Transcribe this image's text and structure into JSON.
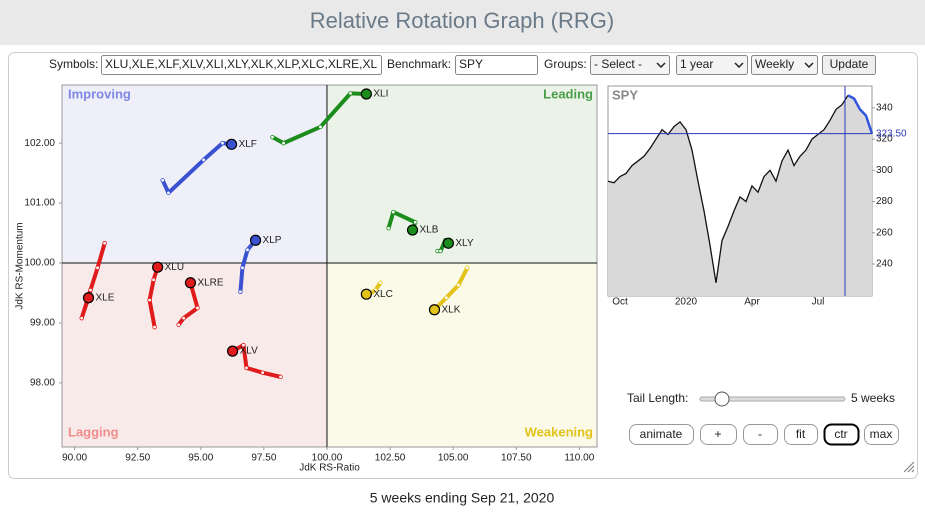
{
  "header": {
    "title": "Relative Rotation Graph (RRG)"
  },
  "controls": {
    "symbols_label": "Symbols:",
    "symbols": "XLU,XLE,XLF,XLV,XLI,XLY,XLK,XLP,XLC,XLRE,XL",
    "benchmark_label": "Benchmark:",
    "benchmark": "SPY",
    "groups_label": "Groups:",
    "groups": "- Select -",
    "period": "1 year",
    "frequency": "Weekly",
    "update": "Update",
    "tail_length_label": "Tail Length:",
    "tail_length": {
      "value": 5,
      "label": "5 weeks"
    },
    "buttons": [
      "animate",
      "+",
      "-",
      "fit",
      "ctr",
      "max"
    ]
  },
  "chart_data": [
    {
      "type": "rrg",
      "xlabel": "JdK RS-Ratio",
      "ylabel": "JdK RS-Momentum",
      "xlim": [
        89.5,
        110.7
      ],
      "ylim": [
        96.93,
        102.97
      ],
      "center": [
        100,
        100
      ],
      "xticks": [
        {
          "value": 90,
          "label": "90.00"
        },
        {
          "value": 92.5,
          "label": "92.50"
        },
        {
          "value": 95,
          "label": "95.00"
        },
        {
          "value": 97.5,
          "label": "97.50"
        },
        {
          "value": 100,
          "label": "100.00"
        },
        {
          "value": 102.5,
          "label": "102.50"
        },
        {
          "value": 105,
          "label": "105.00"
        },
        {
          "value": 107.5,
          "label": "107.50"
        },
        {
          "value": 110,
          "label": "110.00"
        }
      ],
      "yticks": [
        {
          "value": 98,
          "label": "98.00"
        },
        {
          "value": 99,
          "label": "99.00"
        },
        {
          "value": 100,
          "label": "100.00"
        },
        {
          "value": 101,
          "label": "101.00"
        },
        {
          "value": 102,
          "label": "102.00"
        }
      ],
      "quadrants": [
        {
          "name": "Improving",
          "color": "#7d88e2",
          "background": "#efeff9"
        },
        {
          "name": "Leading",
          "color": "#4a9d4a",
          "background": "#ebf3e9"
        },
        {
          "name": "Lagging",
          "color": "#f08c8c",
          "background": "#f9eaea"
        },
        {
          "name": "Weakening",
          "color": "#e3c21a",
          "background": "#fbf9e7"
        }
      ],
      "series": [
        {
          "name": "XLI",
          "color": "#1c8c1c",
          "x": [
            97.84,
            98.28,
            99.74,
            100.93,
            101.56
          ],
          "values": [
            102.1,
            102.0,
            102.27,
            102.83,
            102.82
          ]
        },
        {
          "name": "XLF",
          "color": "#3a52d2",
          "x": [
            93.49,
            93.72,
            95.11,
            95.86,
            96.22
          ],
          "values": [
            101.38,
            101.17,
            101.72,
            102.0,
            101.98
          ]
        },
        {
          "name": "XLP",
          "color": "#3a52d2",
          "x": [
            96.57,
            96.65,
            96.85,
            97.17
          ],
          "values": [
            99.52,
            99.92,
            100.22,
            100.38
          ]
        },
        {
          "name": "XLU",
          "color": "#e01b1b",
          "x": [
            93.17,
            92.97,
            93.13,
            93.29
          ],
          "values": [
            98.93,
            99.38,
            99.72,
            99.93
          ]
        },
        {
          "name": "XLE",
          "color": "#e01b1b",
          "x": [
            91.19,
            90.91,
            90.63,
            90.28,
            90.55
          ],
          "values": [
            100.33,
            99.92,
            99.55,
            99.08,
            99.42
          ]
        },
        {
          "name": "XLRE",
          "color": "#e01b1b",
          "x": [
            94.12,
            94.32,
            94.87,
            94.59
          ],
          "values": [
            98.97,
            99.08,
            99.25,
            99.67
          ]
        },
        {
          "name": "XLV",
          "color": "#e01b1b",
          "x": [
            98.16,
            97.45,
            96.81,
            96.69,
            96.26
          ],
          "values": [
            98.1,
            98.17,
            98.25,
            98.63,
            98.53
          ]
        },
        {
          "name": "XLB",
          "color": "#1c8c1c",
          "x": [
            102.44,
            102.63,
            103.5,
            103.39
          ],
          "values": [
            100.58,
            100.85,
            100.68,
            100.55
          ]
        },
        {
          "name": "XLY",
          "color": "#1c8c1c",
          "x": [
            104.38,
            104.5,
            104.69,
            104.81
          ],
          "values": [
            100.2,
            100.2,
            100.38,
            100.33
          ]
        },
        {
          "name": "XLC",
          "color": "#e3c21a",
          "x": [
            102.12,
            101.92,
            101.64,
            101.56
          ],
          "values": [
            99.67,
            99.55,
            99.47,
            99.48
          ]
        },
        {
          "name": "XLK",
          "color": "#e3c21a",
          "x": [
            105.56,
            105.21,
            104.73,
            104.26
          ],
          "values": [
            99.92,
            99.63,
            99.42,
            99.22
          ]
        }
      ]
    },
    {
      "type": "line",
      "title": "SPY",
      "categories": [
        null,
        null,
        "Oct",
        null,
        null,
        null,
        null,
        null,
        null,
        null,
        null,
        null,
        null,
        "2020",
        null,
        null,
        null,
        null,
        null,
        null,
        null,
        null,
        null,
        null,
        "Apr",
        null,
        null,
        null,
        null,
        null,
        null,
        null,
        null,
        null,
        null,
        "Jul",
        null,
        null,
        null,
        null,
        null,
        null,
        null,
        null,
        null
      ],
      "series": [
        {
          "color": "#111111",
          "values": [
            293,
            292,
            296,
            298,
            303,
            306,
            309,
            314,
            320,
            326,
            323,
            328,
            331,
            326,
            313,
            293,
            274,
            252,
            228,
            255,
            264,
            274,
            283,
            280,
            290,
            286,
            296,
            300,
            293,
            306,
            313,
            303,
            309,
            313,
            320,
            323,
            326,
            332,
            339,
            342,
            348,
            346,
            339,
            335,
            323.5
          ]
        }
      ],
      "tail_color": "#3355dd",
      "ylim": [
        219.5,
        354
      ],
      "yticks": [
        240,
        260,
        280,
        300,
        320,
        340
      ],
      "current": {
        "value": 323.5,
        "label": "323.50"
      },
      "current_color": "#2a3ab8"
    }
  ],
  "footer": "5 weeks ending Sep 21, 2020"
}
